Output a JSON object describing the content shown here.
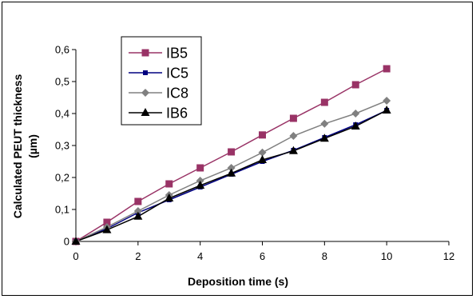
{
  "chart_data": {
    "type": "line",
    "title": "",
    "xlabel": "Deposition time (s)",
    "ylabel_line1": "Calculated PEUT thickness",
    "ylabel_line2": "(µm)",
    "xlim": [
      0,
      12
    ],
    "ylim": [
      0,
      0.6
    ],
    "x_ticks": [
      0,
      2,
      4,
      6,
      8,
      10,
      12
    ],
    "x_tick_labels": [
      "0",
      "2",
      "4",
      "6",
      "8",
      "10",
      "12"
    ],
    "y_ticks": [
      0,
      0.1,
      0.2,
      0.3,
      0.4,
      0.5,
      0.6
    ],
    "y_tick_labels": [
      "0",
      "0,1",
      "0,2",
      "0,3",
      "0,4",
      "0,5",
      "0,6"
    ],
    "grid": false,
    "legend_position": "top-left",
    "x": [
      0,
      1,
      2,
      3,
      4,
      5,
      6,
      7,
      8,
      9,
      10
    ],
    "series": [
      {
        "name": "IB5",
        "color": "#993366",
        "marker": "square",
        "values": [
          0,
          0.06,
          0.125,
          0.18,
          0.23,
          0.28,
          0.333,
          0.385,
          0.435,
          0.49,
          0.54
        ]
      },
      {
        "name": "IC5",
        "color": "#000080",
        "marker": "small-square",
        "values": [
          0,
          0.04,
          0.09,
          0.13,
          0.17,
          0.21,
          0.25,
          0.285,
          0.325,
          0.365,
          0.41
        ]
      },
      {
        "name": "IC8",
        "color": "#808080",
        "marker": "diamond",
        "values": [
          0,
          0.045,
          0.095,
          0.145,
          0.19,
          0.23,
          0.278,
          0.33,
          0.368,
          0.4,
          0.44
        ]
      },
      {
        "name": "IB6",
        "color": "#000000",
        "marker": "triangle",
        "values": [
          0,
          0.036,
          0.078,
          0.135,
          0.175,
          0.213,
          0.255,
          0.283,
          0.322,
          0.36,
          0.41
        ]
      }
    ]
  }
}
